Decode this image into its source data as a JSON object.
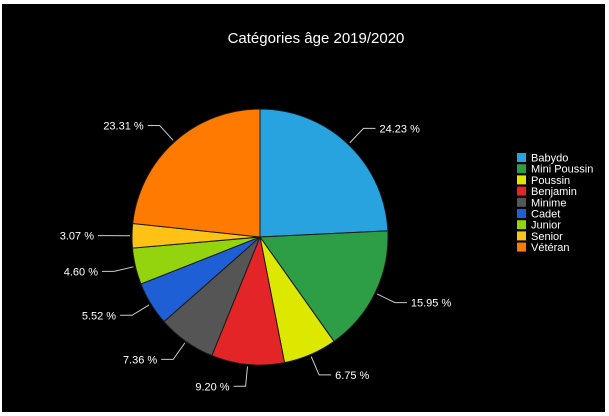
{
  "chart_data": {
    "type": "pie",
    "title": "Catégories âge 2019/2020",
    "legend_position": "right",
    "slices": [
      {
        "name": "Babydo",
        "value": 24.23,
        "label": "24.23 %",
        "color": "#29a3e0"
      },
      {
        "name": "Mini Poussin",
        "value": 15.95,
        "label": "15.95 %",
        "color": "#2e9e46"
      },
      {
        "name": "Poussin",
        "value": 6.75,
        "label": "6.75 %",
        "color": "#dde800"
      },
      {
        "name": "Benjamin",
        "value": 9.2,
        "label": "9.20 %",
        "color": "#e32528"
      },
      {
        "name": "Minime",
        "value": 7.36,
        "label": "7.36 %",
        "color": "#555555"
      },
      {
        "name": "Cadet",
        "value": 5.52,
        "label": "5.52 %",
        "color": "#1f5fd6"
      },
      {
        "name": "Junior",
        "value": 4.6,
        "label": "4.60 %",
        "color": "#94d40e"
      },
      {
        "name": "Senior",
        "value": 3.07,
        "label": "3.07 %",
        "color": "#ffc215"
      },
      {
        "name": "Vétéran",
        "value": 23.31,
        "label": "23.31 %",
        "color": "#ff7a00"
      }
    ]
  }
}
